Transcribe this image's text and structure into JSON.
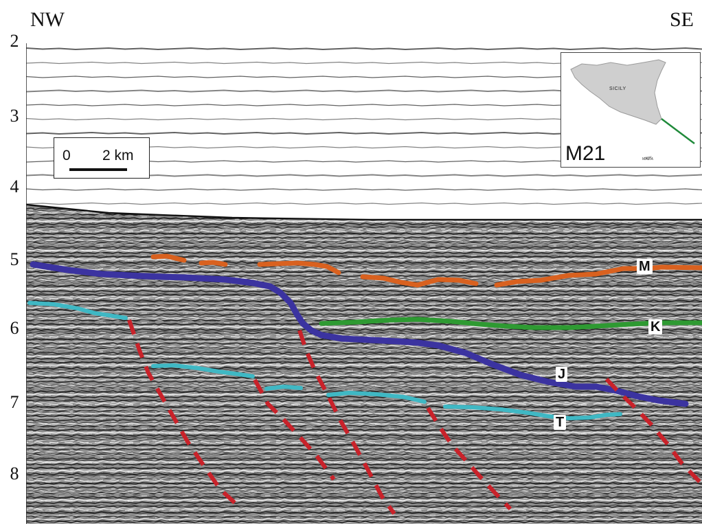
{
  "header": {
    "left_direction": "NW",
    "right_direction": "SE"
  },
  "axis": {
    "ticks": [
      "2",
      "3",
      "4",
      "5",
      "6",
      "7",
      "8"
    ]
  },
  "scale_bar": {
    "zero": "0",
    "distance": "2 km"
  },
  "location_map": {
    "island_label": "SICILY",
    "survey_line_label": "M21",
    "small_label": "MALTA",
    "line_color": "#1f8a3a"
  },
  "horizons": [
    {
      "label": "M",
      "color": "#d9611f"
    },
    {
      "label": "K",
      "color": "#2e9a32"
    },
    {
      "label": "J",
      "color": "#3b33a0"
    },
    {
      "label": "T",
      "color": "#3fb8c4"
    }
  ],
  "faults": {
    "color": "#c9222a"
  }
}
